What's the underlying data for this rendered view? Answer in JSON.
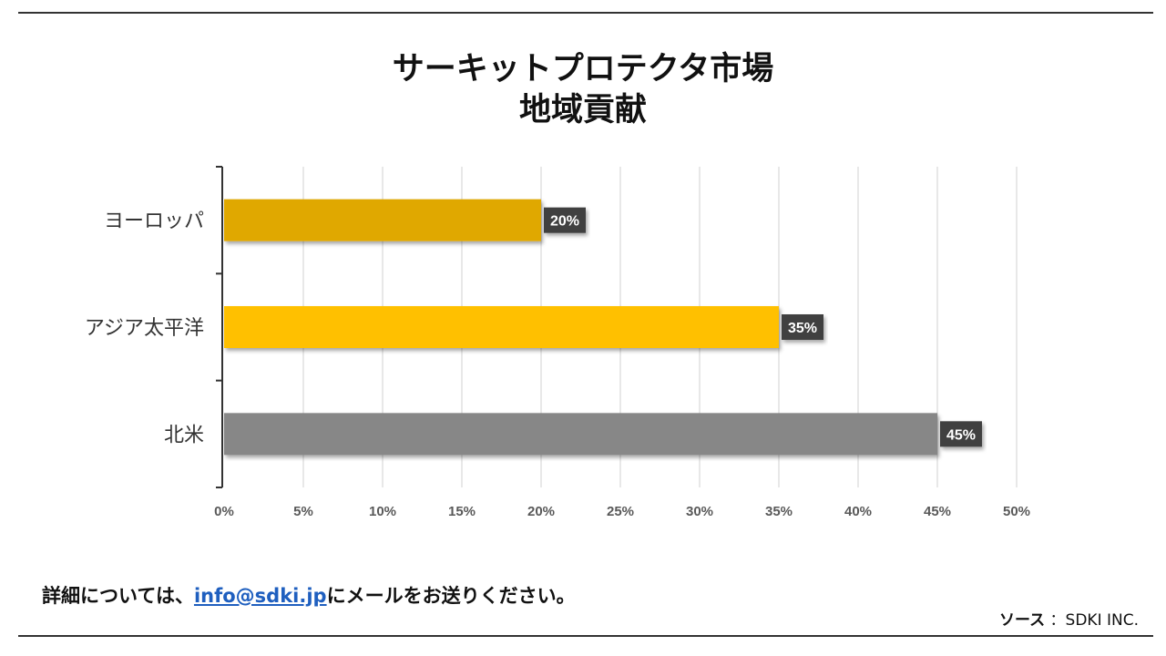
{
  "title": {
    "line1": "サーキットプロテクタ市場",
    "line2": "地域貢献"
  },
  "chart_data": {
    "type": "bar",
    "orientation": "horizontal",
    "categories": [
      "ヨーロッパ",
      "アジア太平洋",
      "北米"
    ],
    "values": [
      20,
      35,
      45
    ],
    "data_labels": [
      "20%",
      "35%",
      "45%"
    ],
    "colors": [
      "#E0A800",
      "#FFC000",
      "#878787"
    ],
    "xlim": [
      0,
      50
    ],
    "x_ticks": [
      "0%",
      "5%",
      "10%",
      "15%",
      "20%",
      "25%",
      "30%",
      "35%",
      "40%",
      "45%",
      "50%"
    ],
    "grid": true,
    "legend": "none",
    "xlabel": "",
    "ylabel": ""
  },
  "footer": {
    "prefix": "詳細については、",
    "email": "info@sdki.jp",
    "suffix": "にメールをお送りください。"
  },
  "source": {
    "label": "ソース",
    "value": "：SDKI INC."
  }
}
